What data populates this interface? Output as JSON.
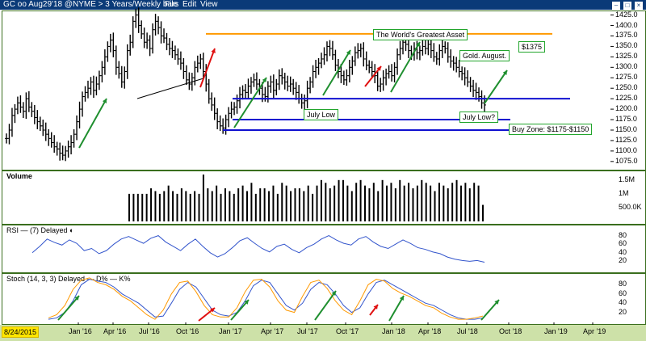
{
  "window": {
    "title": "GC oo Aug29'18 @NYME > 3 Years/Weekly bars",
    "menu": [
      "File",
      "Edit",
      "View"
    ]
  },
  "colors": {
    "plot_border": "#3a6e1e",
    "bars": "#000000",
    "orange_line": "#ff9900",
    "blue_line": "#1010d0",
    "green_arrow": "#1f8f2f",
    "red_arrow": "#e01010",
    "rsi_line": "#3355cc",
    "stoch_d": "#3355cc",
    "stoch_k": "#ff9900",
    "bottom_bar": "#cde1a8",
    "date_box": "#ffe600"
  },
  "annotations": {
    "greatest_asset": "The World's Greatest Asset",
    "level_1375": "$1375",
    "gold_august": "Gold. August.",
    "july_low": "July Low",
    "july_low_q": "July Low?",
    "buy_zone": "Buy Zone: $1175-$1150"
  },
  "date_box": "8/24/2015",
  "panels": {
    "volume": "Volume",
    "rsi": "RSI — (7) Delayed ◐",
    "stoch": "Stoch (14, 3, 3) Delayed — D% — K%"
  },
  "chart_data": [
    {
      "type": "bar",
      "subtype": "ohlc",
      "title": "GC oo Aug29'18 @NYME > 3 Years/Weekly bars",
      "x_ticks": [
        "Jan '16",
        "Apr '16",
        "Jul '16",
        "Oct '16",
        "Jan '17",
        "Apr '17",
        "Jul '17",
        "Oct '17",
        "Jan '18",
        "Apr '18",
        "Jul '18",
        "Oct '18",
        "Jan '19",
        "Apr '19"
      ],
      "y_ticks": [
        1075,
        1100,
        1125,
        1150,
        1175,
        1200,
        1225,
        1250,
        1275,
        1300,
        1325,
        1350,
        1375,
        1400,
        1425
      ],
      "ylim": [
        1065,
        1430
      ],
      "grid": false,
      "closes": [
        1130,
        1150,
        1185,
        1200,
        1215,
        1205,
        1195,
        1225,
        1205,
        1195,
        1180,
        1170,
        1160,
        1150,
        1140,
        1130,
        1120,
        1110,
        1105,
        1095,
        1090,
        1100,
        1110,
        1120,
        1140,
        1170,
        1200,
        1230,
        1240,
        1250,
        1265,
        1245,
        1260,
        1280,
        1300,
        1325,
        1350,
        1365,
        1340,
        1300,
        1285,
        1265,
        1290,
        1340,
        1360,
        1410,
        1425,
        1400,
        1380,
        1360,
        1365,
        1345,
        1390,
        1410,
        1395,
        1375,
        1370,
        1355,
        1345,
        1340,
        1330,
        1320,
        1310,
        1290,
        1270,
        1260,
        1275,
        1300,
        1310,
        1320,
        1290,
        1260,
        1225,
        1210,
        1190,
        1170,
        1160,
        1155,
        1175,
        1190,
        1200,
        1205,
        1220,
        1235,
        1245,
        1240,
        1255,
        1265,
        1270,
        1260,
        1250,
        1235,
        1230,
        1255,
        1265,
        1245,
        1260,
        1280,
        1275,
        1265,
        1255,
        1260,
        1250,
        1240,
        1225,
        1215,
        1220,
        1250,
        1265,
        1290,
        1300,
        1310,
        1320,
        1330,
        1350,
        1345,
        1330,
        1305,
        1290,
        1280,
        1270,
        1280,
        1300,
        1315,
        1335,
        1340,
        1345,
        1320,
        1305,
        1300,
        1290,
        1280,
        1255,
        1260,
        1275,
        1285,
        1290,
        1280,
        1300,
        1330,
        1345,
        1360,
        1355,
        1340,
        1330,
        1345,
        1335,
        1340,
        1350,
        1345,
        1355,
        1340,
        1325,
        1320,
        1340,
        1350,
        1345,
        1325,
        1315,
        1310,
        1300,
        1290,
        1285,
        1275,
        1265,
        1255,
        1245,
        1240,
        1230,
        1215,
        1210
      ],
      "lines": [
        {
          "name": "",
          "color": "orange",
          "price": 1380,
          "from": "Oct '16",
          "to": "Oct '18"
        },
        {
          "name": "",
          "color": "blue",
          "price": 1225,
          "from": "Jan '17",
          "to": "Oct '18"
        },
        {
          "name": "",
          "color": "blue",
          "price": 1175,
          "from": "Jan '17",
          "to": "Oct '18"
        },
        {
          "name": "",
          "color": "blue",
          "price": 1150,
          "from": "Jan '17",
          "to": "Oct '18"
        }
      ]
    },
    {
      "type": "bar",
      "title": "Volume",
      "y_ticks": [
        "1.5M",
        "1M",
        "500.0K"
      ],
      "volumes": [
        1.0,
        1.0,
        1.0,
        1.0,
        1.0,
        1.2,
        1.1,
        1.0,
        1.1,
        1.3,
        1.1,
        1.0,
        1.2,
        1.1,
        1.0,
        1.1,
        1.0,
        1.5,
        1.2,
        1.1,
        1.3,
        1.0,
        1.2,
        1.1,
        1.0,
        1.2,
        1.3,
        1.1,
        1.4,
        1.0,
        1.2,
        1.2,
        1.1,
        1.3,
        1.0,
        1.4,
        1.3,
        1.1,
        1.2,
        1.2,
        1.1,
        1.3,
        1.0,
        1.3,
        1.5,
        1.4,
        1.2,
        1.3,
        1.5,
        1.5,
        1.3,
        1.1,
        1.4,
        1.5,
        1.3,
        1.2,
        1.4,
        1.1,
        1.5,
        1.3,
        1.4,
        1.2,
        1.5,
        1.3,
        1.4,
        1.2,
        1.3,
        1.5,
        1.4,
        1.3,
        1.1,
        1.4,
        1.3,
        1.2,
        1.4,
        1.5,
        1.3,
        1.4,
        1.2,
        1.4,
        1.3,
        0.6
      ]
    },
    {
      "type": "line",
      "title": "RSI",
      "y_ticks": [
        20,
        40,
        60,
        80
      ],
      "ylim": [
        0,
        100
      ],
      "series": [
        {
          "name": "",
          "values": [
            40,
            55,
            72,
            64,
            58,
            70,
            62,
            45,
            50,
            38,
            45,
            60,
            72,
            78,
            70,
            62,
            74,
            80,
            65,
            55,
            45,
            60,
            72,
            55,
            40,
            30,
            38,
            52,
            68,
            75,
            62,
            50,
            42,
            55,
            60,
            48,
            40,
            52,
            60,
            72,
            80,
            70,
            62,
            58,
            72,
            78,
            65,
            55,
            50,
            60,
            70,
            62,
            52,
            48,
            42,
            38,
            30,
            25,
            22,
            20,
            22,
            18
          ]
        }
      ]
    },
    {
      "type": "line",
      "title": "Stoch",
      "y_ticks": [
        20,
        40,
        60,
        80
      ],
      "ylim": [
        0,
        100
      ],
      "series": [
        {
          "name": "D%",
          "values": [
            5,
            8,
            20,
            45,
            80,
            92,
            88,
            85,
            75,
            60,
            50,
            40,
            25,
            10,
            12,
            40,
            70,
            85,
            75,
            50,
            25,
            15,
            12,
            20,
            45,
            78,
            90,
            85,
            60,
            35,
            25,
            40,
            70,
            85,
            80,
            60,
            35,
            20,
            30,
            60,
            85,
            90,
            80,
            70,
            60,
            50,
            40,
            35,
            25,
            15,
            8,
            5,
            5,
            8
          ]
        },
        {
          "name": "K%",
          "values": [
            8,
            15,
            35,
            70,
            90,
            95,
            85,
            80,
            70,
            55,
            45,
            30,
            15,
            5,
            25,
            60,
            85,
            88,
            65,
            35,
            15,
            10,
            10,
            30,
            65,
            90,
            92,
            75,
            45,
            25,
            20,
            55,
            85,
            90,
            72,
            45,
            25,
            15,
            45,
            80,
            92,
            88,
            72,
            62,
            55,
            45,
            35,
            30,
            18,
            10,
            5,
            5,
            8,
            12
          ]
        }
      ]
    }
  ]
}
